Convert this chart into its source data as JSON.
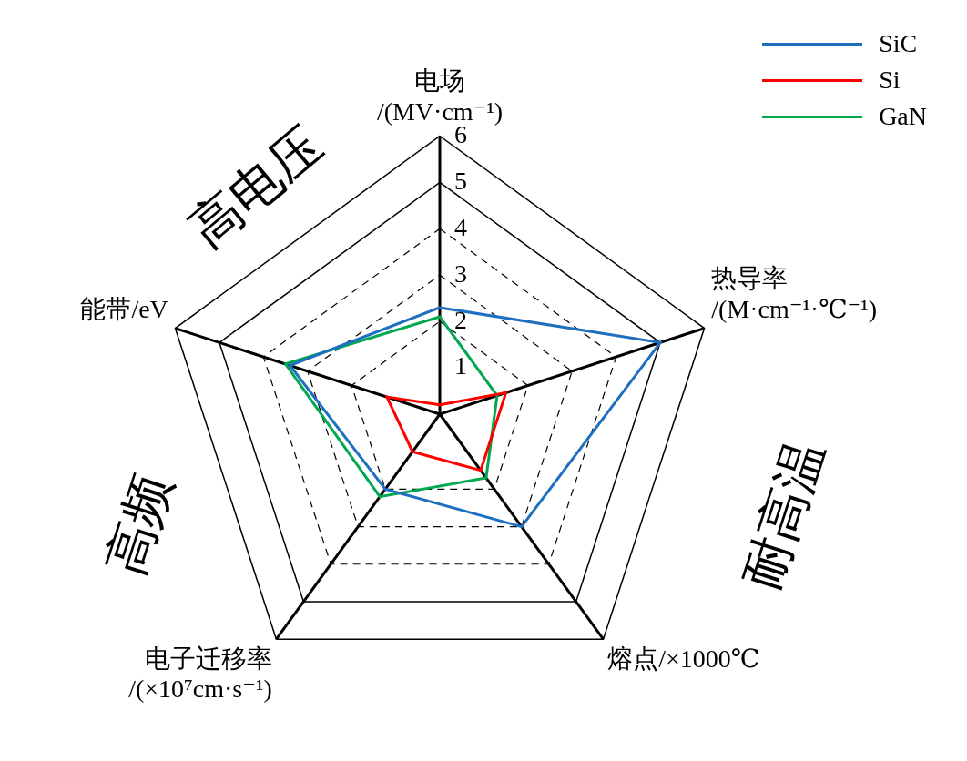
{
  "chart_data": {
    "type": "radar",
    "categories": [
      "电场\n/(MV·cm⁻¹)",
      "热导率\n/(M·cm⁻¹·℃⁻¹)",
      "熔点/×1000℃",
      "电子迁移率\n/(×10⁷cm·s⁻¹)",
      "能带/eV"
    ],
    "series": [
      {
        "name": "SiC",
        "color": "#1f6fc0",
        "values": [
          2.3,
          5.0,
          3.0,
          2.0,
          3.4
        ]
      },
      {
        "name": "Si",
        "color": "#ff0000",
        "values": [
          0.2,
          1.5,
          1.5,
          1.0,
          1.2
        ]
      },
      {
        "name": "GaN",
        "color": "#00a84f",
        "values": [
          2.1,
          1.3,
          1.7,
          2.2,
          3.5
        ]
      }
    ],
    "ylim": [
      0,
      6
    ],
    "yticks": [
      1,
      2,
      3,
      4,
      5,
      6
    ],
    "annotations": [
      "高电压",
      "耐高温",
      "高频"
    ],
    "legend": "top right",
    "grid": true
  }
}
